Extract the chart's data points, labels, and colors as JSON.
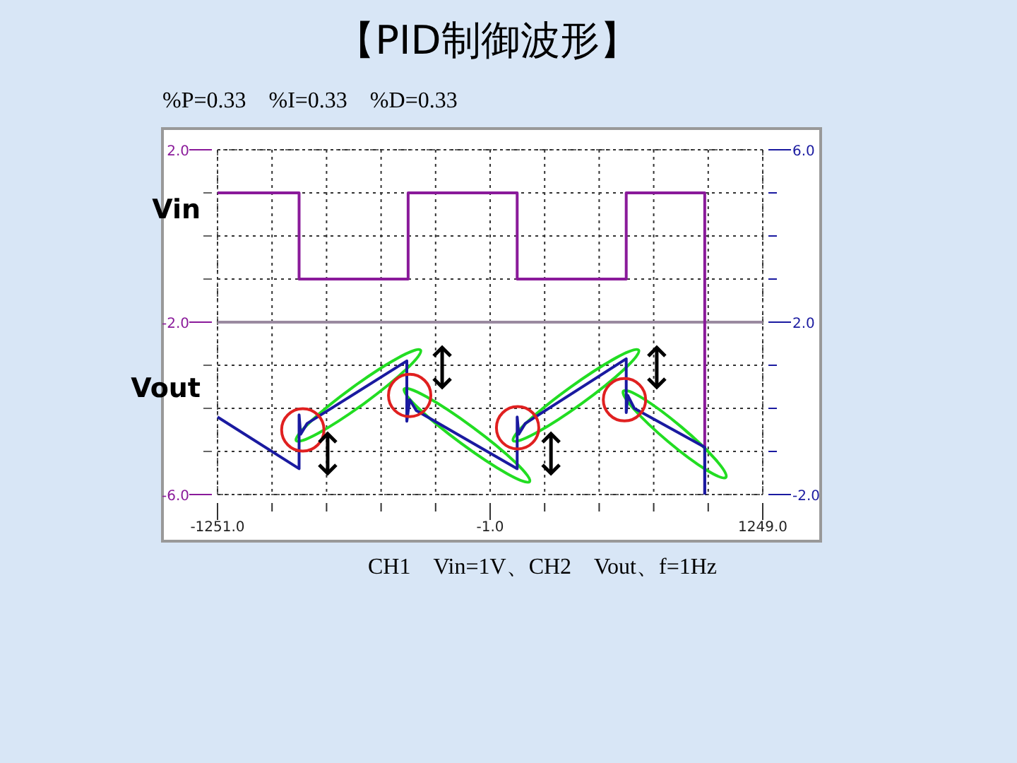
{
  "chart_data": {
    "type": "line",
    "title": "【PID制御波形】",
    "subtitle": "%P=0.33　%I=0.33　%D=0.33",
    "annotations": [
      "CH1　Vin=1V、CH2　Vout、f=1Hz"
    ],
    "xlim": [
      -1251,
      1249
    ],
    "xticks": [
      {
        "value": -1251,
        "label": "-1251.0"
      },
      {
        "value": -1001,
        "label": null
      },
      {
        "value": -751,
        "label": null
      },
      {
        "value": -501,
        "label": null
      },
      {
        "value": -251,
        "label": null
      },
      {
        "value": -1,
        "label": "-1.0"
      },
      {
        "value": 249,
        "label": null
      },
      {
        "value": 499,
        "label": null
      },
      {
        "value": 749,
        "label": null
      },
      {
        "value": 999,
        "label": null
      },
      {
        "value": 1249,
        "label": "1249.0"
      }
    ],
    "ylim": [
      -6,
      2
    ],
    "yticks": [
      {
        "value": -6,
        "label": "-6.0"
      },
      {
        "value": -5,
        "label": null
      },
      {
        "value": -4,
        "label": null
      },
      {
        "value": -3,
        "label": null
      },
      {
        "value": -2,
        "label": "-2.0"
      },
      {
        "value": -1,
        "label": null
      },
      {
        "value": 0,
        "label": null
      },
      {
        "value": 1,
        "label": null
      },
      {
        "value": 2,
        "label": "2.0"
      }
    ],
    "y2lim": [
      -2,
      6
    ],
    "y2ticks": [
      {
        "value": -2,
        "label": "-2.0"
      },
      {
        "value": -1,
        "label": null
      },
      {
        "value": 0,
        "label": null
      },
      {
        "value": 1,
        "label": null
      },
      {
        "value": 2,
        "label": "2.0"
      },
      {
        "value": 3,
        "label": null
      },
      {
        "value": 4,
        "label": null
      },
      {
        "value": 5,
        "label": null
      },
      {
        "value": 6,
        "label": "6.0"
      }
    ],
    "grid": true,
    "legend": "left",
    "ref_lines": [
      {
        "axis": "y",
        "value": -2,
        "color": "#9a8aa0",
        "line_style": "solid"
      }
    ],
    "series": [
      {
        "name": "Vin",
        "color": "#8a1a9a",
        "x": [
          -1251,
          -877,
          -877,
          -377,
          -377,
          123,
          123,
          623,
          623,
          983,
          983
        ],
        "values": [
          1,
          1,
          -1,
          -1,
          1,
          1,
          -1,
          -1,
          1,
          1,
          -6
        ]
      },
      {
        "name": "Vout",
        "color": "#1a1aa0",
        "axis": "y2",
        "x": [
          -1251,
          -877,
          -877,
          -870,
          -840,
          -383,
          -383,
          -370,
          -340,
          123,
          123,
          130,
          160,
          623,
          623,
          630,
          660,
          983,
          983
        ],
        "values": [
          -0.2,
          -1.4,
          -0.15,
          -0.6,
          -0.35,
          1.1,
          -0.3,
          0.2,
          -0.05,
          -1.4,
          -0.2,
          -0.6,
          -0.35,
          1.15,
          -0.1,
          0.3,
          0.0,
          -0.9,
          -2
        ]
      }
    ]
  }
}
